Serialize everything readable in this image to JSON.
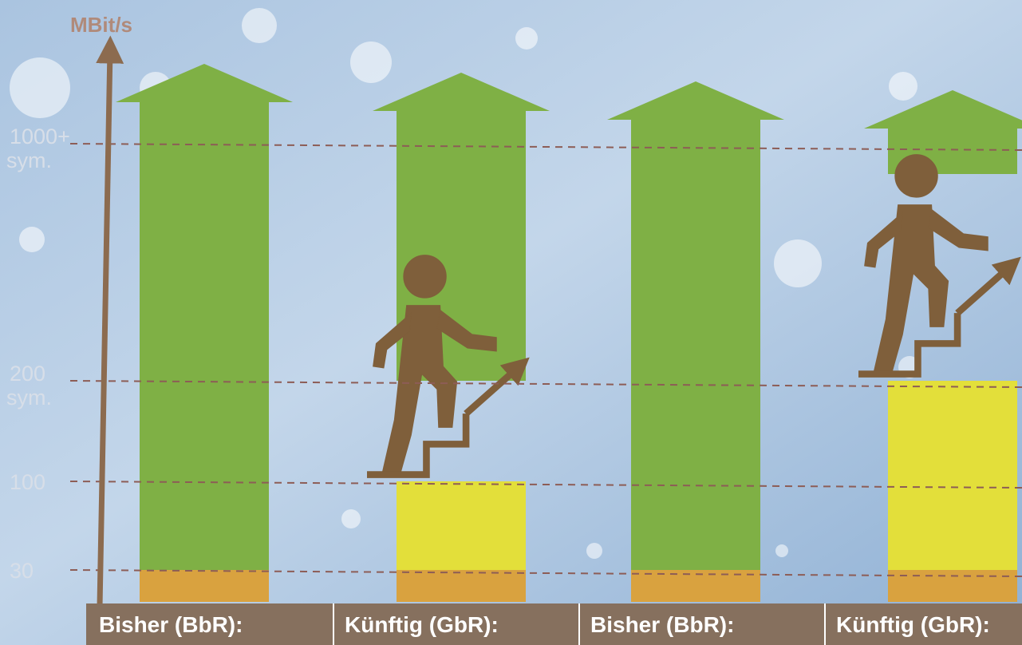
{
  "chart_data": {
    "type": "bar",
    "y_unit_label": "MBit/s",
    "y_scale": "ordinal",
    "y_levels": [
      {
        "value": 30,
        "label_line1": "30",
        "label_line2": ""
      },
      {
        "value": 100,
        "label_line1": "100",
        "label_line2": ""
      },
      {
        "value": 200,
        "label_line1": "200",
        "label_line2": "sym."
      },
      {
        "value": 1000,
        "label_line1": "1000+",
        "label_line2": "sym."
      }
    ],
    "categories": [
      "Bisher (BbR):",
      "Künftig (GbR):",
      "Bisher (BbR):",
      "Künftig (GbR):"
    ],
    "bars": [
      {
        "category": "Bisher (BbR):",
        "segments": [
          {
            "from": 0,
            "to": 30,
            "kind": "base"
          },
          {
            "from": 30,
            "to": 1000,
            "kind": "upgrade",
            "open_ended": true
          }
        ]
      },
      {
        "category": "Künftig (GbR):",
        "segments": [
          {
            "from": 0,
            "to": 30,
            "kind": "base"
          },
          {
            "from": 30,
            "to": 100,
            "kind": "current"
          },
          {
            "from": 200,
            "to": 1000,
            "kind": "upgrade",
            "open_ended": true
          }
        ],
        "icon": "person-climbing-stairs-icon"
      },
      {
        "category": "Bisher (BbR):",
        "segments": [
          {
            "from": 0,
            "to": 30,
            "kind": "base"
          },
          {
            "from": 30,
            "to": 1000,
            "kind": "upgrade",
            "open_ended": true
          }
        ]
      },
      {
        "category": "Künftig (GbR):",
        "segments": [
          {
            "from": 0,
            "to": 30,
            "kind": "base"
          },
          {
            "from": 30,
            "to": 200,
            "kind": "current"
          },
          {
            "from": 1000,
            "to": 1000,
            "kind": "upgrade",
            "open_ended": true
          }
        ],
        "icon": "person-climbing-stairs-icon"
      }
    ],
    "grid_lines": "dashed",
    "legend": "none",
    "colors": {
      "base": "#d9a23f",
      "current": "#e3df3a",
      "upgrade": "#7fb045",
      "axis": "#8c6b4f",
      "icon": "#7f5f3b",
      "category_band": "#86705e",
      "gridline": "#8d5d56"
    }
  }
}
